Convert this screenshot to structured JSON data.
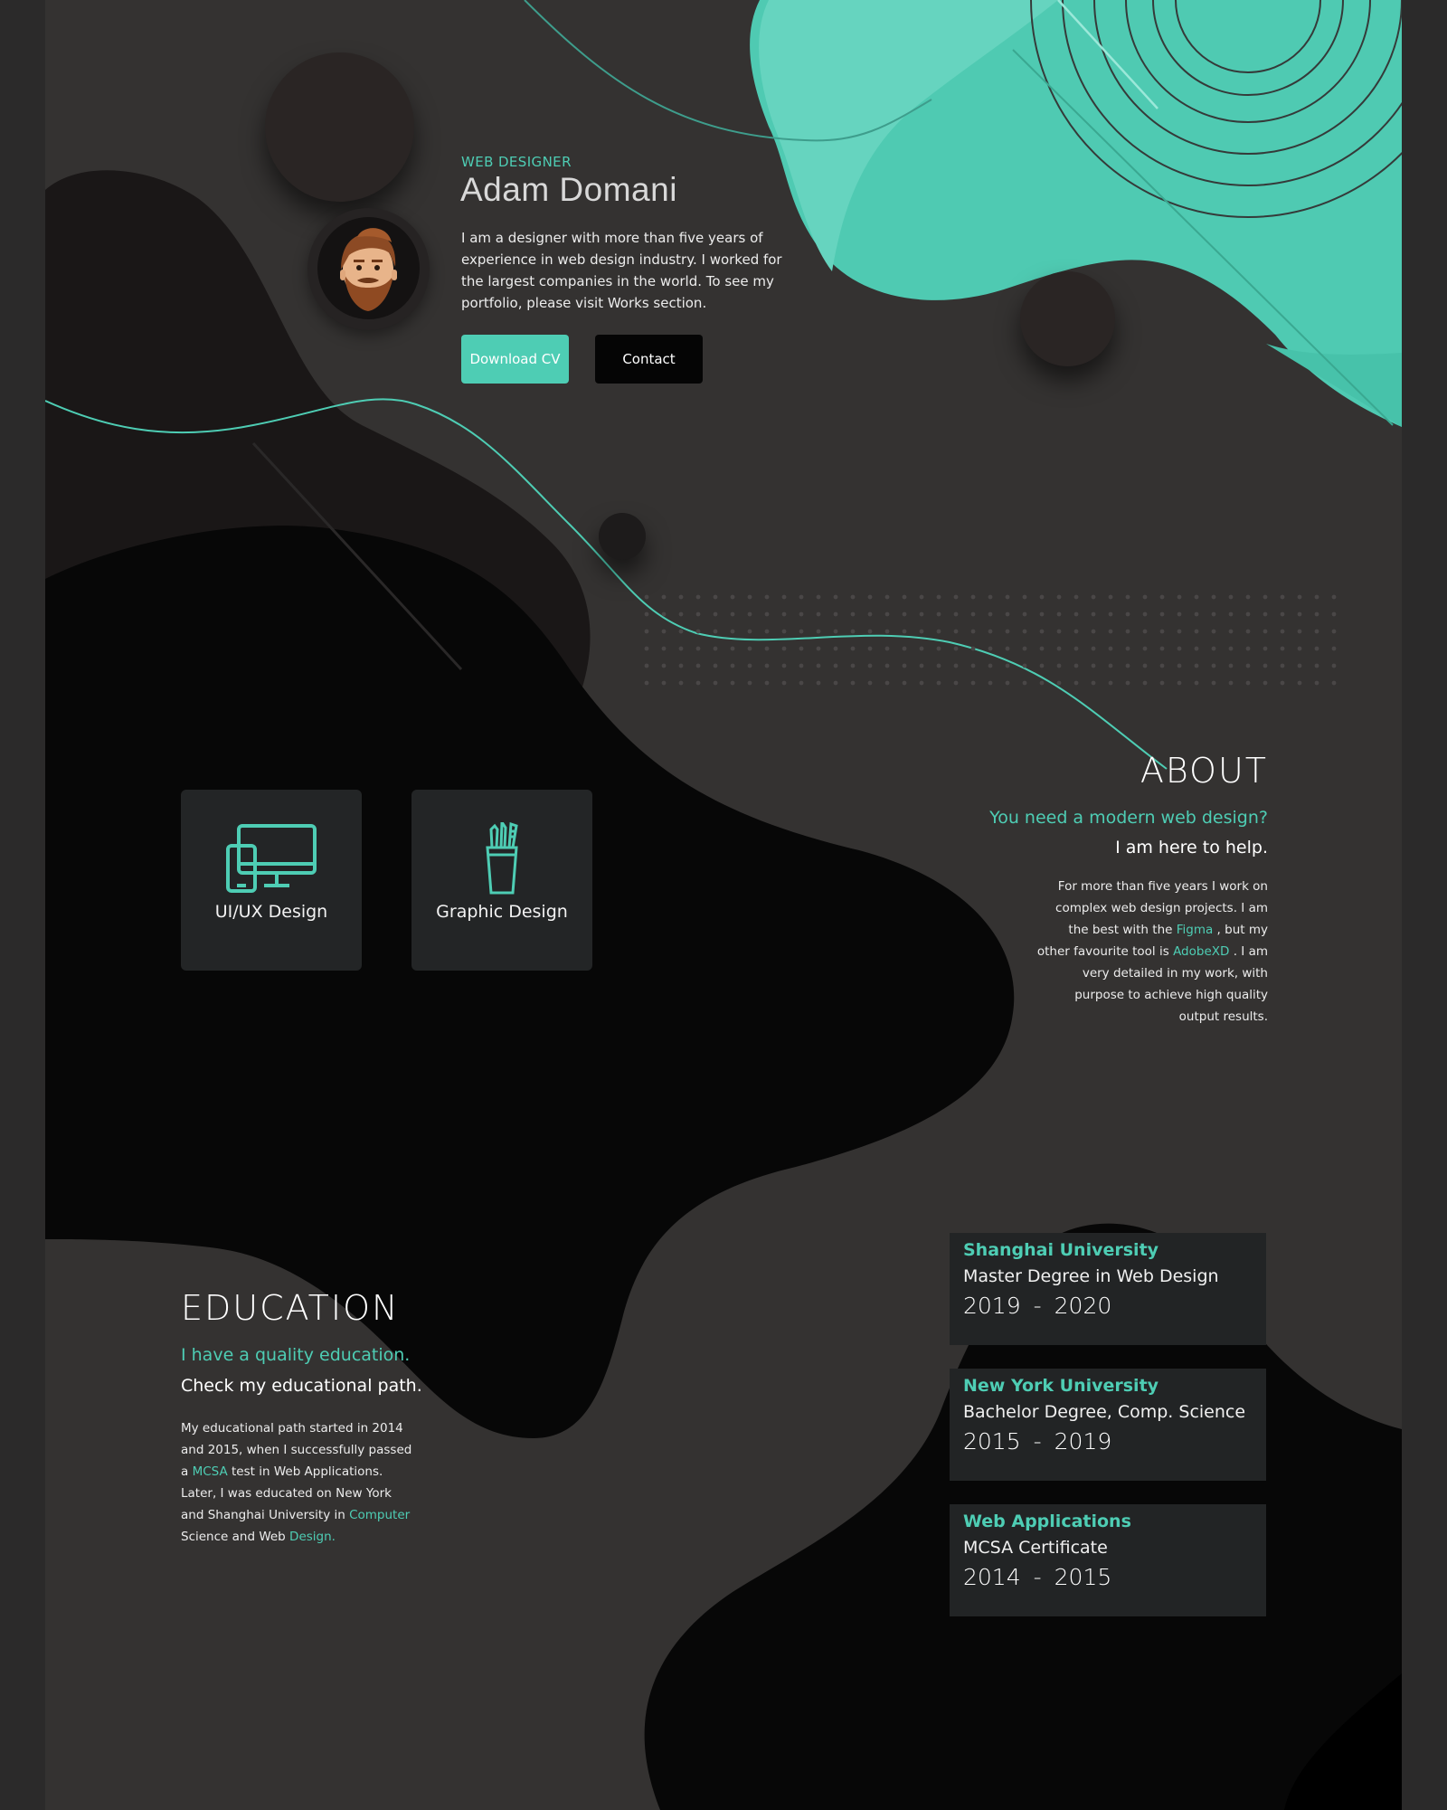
{
  "hero": {
    "role": "WEB DESIGNER",
    "name": "Adam Domani",
    "bio": "I am a designer with more than five years of experience in web design industry. I worked for the largest companies in the world. To see my portfolio, please visit Works section.",
    "download_label": "Download CV",
    "contact_label": "Contact"
  },
  "services": [
    {
      "label": "UI/UX Design",
      "icon": "devices-icon"
    },
    {
      "label": "Graphic Design",
      "icon": "pencil-cup-icon"
    }
  ],
  "about": {
    "title": "ABOUT",
    "tagline": "You need a modern web design?",
    "subtitle": "I am here to help.",
    "text_1": "For more than five years I work on complex web design projects. I am the best with the ",
    "link_figma": "Figma",
    "text_2": " , but my other favourite tool is ",
    "link_adobexd": "AdobeXD",
    "text_3": " . I am very detailed in my work, with purpose to achieve high quality output results."
  },
  "education": {
    "title": "EDUCATION",
    "tagline": "I have a quality education.",
    "subtitle": "Check my educational path.",
    "text_1": "My educational path started in 2014 and 2015, when I successfully passed a ",
    "link_mcsa": "MCSA",
    "text_2": " test in Web Applications. Later, I was educated on New York and Shanghai University in ",
    "link_computer": "Computer",
    "text_3": " Science and Web ",
    "link_design": "Design.",
    "items": [
      {
        "school": "Shanghai University",
        "degree": "Master Degree in Web Design",
        "start": "2019",
        "end": "2020"
      },
      {
        "school": "New York University",
        "degree": "Bachelor Degree, Comp. Science",
        "start": "2015",
        "end": "2019"
      },
      {
        "school": "Web Applications",
        "degree": "MCSA Certificate",
        "start": "2014",
        "end": "2015"
      }
    ]
  },
  "colors": {
    "accent": "#4ecdb4",
    "background": "#343231",
    "dark": "#050505",
    "card": "#232526"
  }
}
